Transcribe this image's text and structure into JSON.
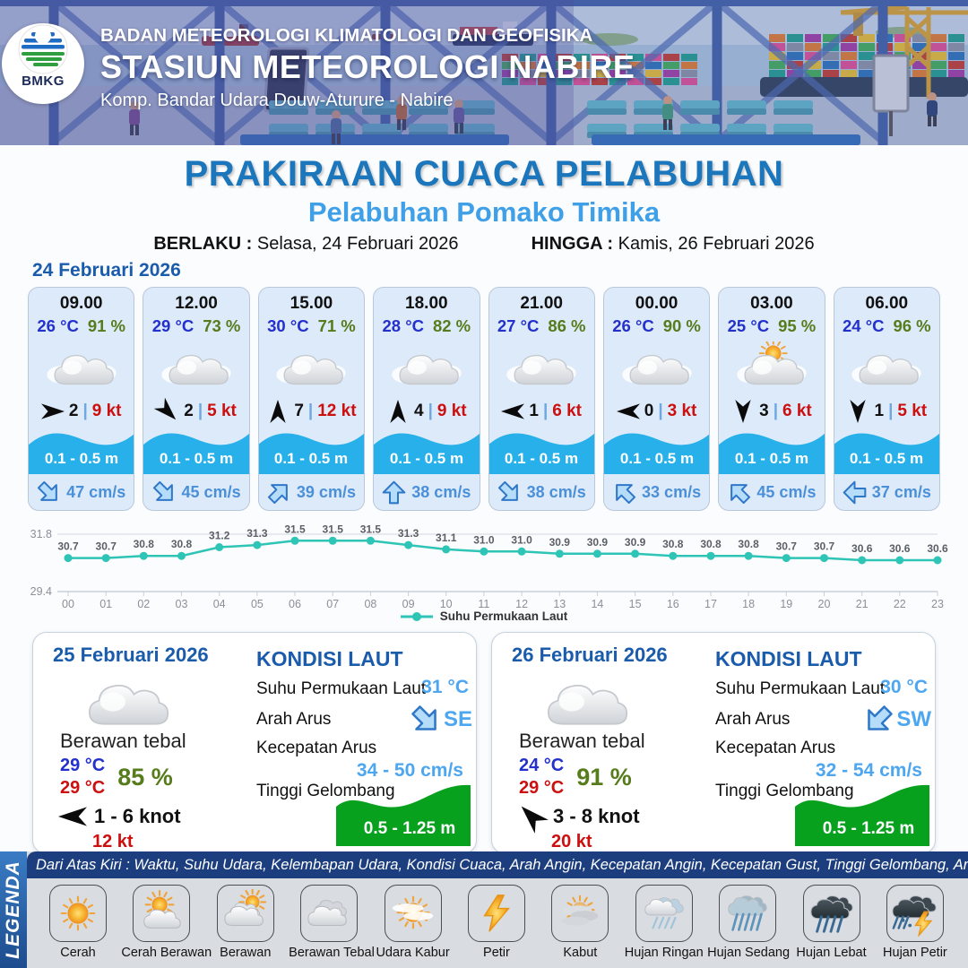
{
  "header": {
    "org": "BADAN METEOROLOGI KLIMATOLOGI DAN GEOFISIKA",
    "station": "STASIUN METEOROLOGI NABIRE",
    "address": "Komp. Bandar Udara Douw-Aturure - Nabire",
    "logo_label": "BMKG"
  },
  "title": {
    "main": "PRAKIRAAN CUACA PELABUHAN",
    "subtitle": "Pelabuhan Pomako Timika",
    "berlaku_label": "BERLAKU :",
    "berlaku_value": "Selasa, 24 Februari 2026",
    "hingga_label": "HINGGA :",
    "hingga_value": "Kamis, 26 Februari 2026"
  },
  "forecast_day_label": "24 Februari 2026",
  "hourly": [
    {
      "time": "09.00",
      "temp": "26 °C",
      "rh": "91 %",
      "weather": "berawan",
      "wind_dir": "E",
      "wind_avg": "2",
      "wind_gust": "9 kt",
      "wave": "0.1 - 0.5 m",
      "cur_dir": "SE",
      "cur": "47 cm/s"
    },
    {
      "time": "12.00",
      "temp": "29 °C",
      "rh": "73 %",
      "weather": "berawan",
      "wind_dir": "SE",
      "wind_avg": "2",
      "wind_gust": "5 kt",
      "wave": "0.1 - 0.5 m",
      "cur_dir": "SE",
      "cur": "45 cm/s"
    },
    {
      "time": "15.00",
      "temp": "30 °C",
      "rh": "71 %",
      "weather": "berawan",
      "wind_dir": "N",
      "wind_avg": "7",
      "wind_gust": "12 kt",
      "wave": "0.1 - 0.5 m",
      "cur_dir": "NE",
      "cur": "39 cm/s"
    },
    {
      "time": "18.00",
      "temp": "28 °C",
      "rh": "82 %",
      "weather": "berawan",
      "wind_dir": "N",
      "wind_avg": "4",
      "wind_gust": "9 kt",
      "wave": "0.1 - 0.5 m",
      "cur_dir": "N",
      "cur": "38 cm/s"
    },
    {
      "time": "21.00",
      "temp": "27 °C",
      "rh": "86 %",
      "weather": "berawan",
      "wind_dir": "W",
      "wind_avg": "1",
      "wind_gust": "6 kt",
      "wave": "0.1 - 0.5 m",
      "cur_dir": "SE",
      "cur": "38 cm/s"
    },
    {
      "time": "00.00",
      "temp": "26 °C",
      "rh": "90 %",
      "weather": "berawan",
      "wind_dir": "W",
      "wind_avg": "0",
      "wind_gust": "3 kt",
      "wave": "0.1 - 0.5 m",
      "cur_dir": "NW",
      "cur": "33 cm/s"
    },
    {
      "time": "03.00",
      "temp": "25 °C",
      "rh": "95 %",
      "weather": "cerah-berawan",
      "wind_dir": "S",
      "wind_avg": "3",
      "wind_gust": "6 kt",
      "wave": "0.1 - 0.5 m",
      "cur_dir": "NW",
      "cur": "45 cm/s"
    },
    {
      "time": "06.00",
      "temp": "24 °C",
      "rh": "96 %",
      "weather": "berawan",
      "wind_dir": "S",
      "wind_avg": "1",
      "wind_gust": "5 kt",
      "wave": "0.1 - 0.5 m",
      "cur_dir": "W",
      "cur": "37 cm/s"
    }
  ],
  "chart_data": {
    "type": "line",
    "x": [
      "00",
      "01",
      "02",
      "03",
      "04",
      "05",
      "06",
      "07",
      "08",
      "09",
      "10",
      "11",
      "12",
      "13",
      "14",
      "15",
      "16",
      "17",
      "18",
      "19",
      "20",
      "21",
      "22",
      "23"
    ],
    "series": [
      {
        "name": "Suhu Permukaan Laut",
        "values": [
          30.7,
          30.7,
          30.8,
          30.8,
          31.2,
          31.3,
          31.5,
          31.5,
          31.5,
          31.3,
          31.1,
          31.0,
          31.0,
          30.9,
          30.9,
          30.9,
          30.8,
          30.8,
          30.8,
          30.7,
          30.7,
          30.6,
          30.6,
          30.6
        ]
      }
    ],
    "title": "",
    "xlabel": "",
    "ylabel": "",
    "ylim": [
      29.4,
      31.8
    ],
    "yticks": [
      "31.8",
      "29.4"
    ],
    "grid": true,
    "legend_position": "bottom",
    "line_color": "#2ec4b6"
  },
  "daily": [
    {
      "date": "25 Februari 2026",
      "weather": "berawan-tebal",
      "condition": "Berawan tebal",
      "temp_blue": "29 °C",
      "temp_red": "29 °C",
      "rh": "85 %",
      "wind_dir": "W",
      "wind_range": "1  - 6 knot",
      "gust": "12 kt",
      "sea": {
        "title": "KONDISI LAUT",
        "sst_label": "Suhu Permukaan Laut",
        "sst": "31 °C",
        "arus_label": "Arah Arus",
        "arus_dir": "SE",
        "kec_label": "Kecepatan Arus",
        "kec": "34 - 50 cm/s",
        "gel_label": "Tinggi Gelombang",
        "gel": "0.5 - 1.25 m"
      }
    },
    {
      "date": "26 Februari 2026",
      "weather": "berawan-tebal",
      "condition": "Berawan tebal",
      "temp_blue": "24 °C",
      "temp_red": "29 °C",
      "rh": "91 %",
      "wind_dir": "NW",
      "wind_range": "3  - 8 knot",
      "gust": "20 kt",
      "sea": {
        "title": "KONDISI LAUT",
        "sst_label": "Suhu Permukaan Laut",
        "sst": "30 °C",
        "arus_label": "Arah Arus",
        "arus_dir": "SW",
        "kec_label": "Kecepatan Arus",
        "kec": "32 - 54 cm/s",
        "gel_label": "Tinggi Gelombang",
        "gel": "0.5 - 1.25 m"
      }
    }
  ],
  "legend": {
    "title": "LEGENDA",
    "note": "Dari Atas Kiri : Waktu, Suhu Udara, Kelembapan Udara, Kondisi Cuaca, Arah Angin, Kecepatan Angin, Kecepatan Gust, Tinggi Gelombang, Arah Arus, Kecepatan Arus",
    "items": [
      {
        "icon": "cerah-icon",
        "label": "Cerah"
      },
      {
        "icon": "cerah-berawan-icon",
        "label": "Cerah Berawan"
      },
      {
        "icon": "berawan-icon",
        "label": "Berawan"
      },
      {
        "icon": "berawan-tebal-icon",
        "label": "Berawan Tebal"
      },
      {
        "icon": "udara-kabur-icon",
        "label": "Udara Kabur"
      },
      {
        "icon": "petir-icon",
        "label": "Petir"
      },
      {
        "icon": "kabut-icon",
        "label": "Kabut"
      },
      {
        "icon": "hujan-ringan-icon",
        "label": "Hujan Ringan"
      },
      {
        "icon": "hujan-sedang-icon",
        "label": "Hujan Sedang"
      },
      {
        "icon": "hujan-lebat-icon",
        "label": "Hujan Lebat"
      },
      {
        "icon": "hujan-petir-icon",
        "label": "Hujan Petir"
      }
    ]
  },
  "colors": {
    "title_blue": "#1b76bc",
    "subtitle_blue": "#3fa0e8",
    "date_blue": "#1a5cab",
    "temp_blue": "#2330cc",
    "humidity_green": "#567c1b",
    "gust_red": "#cc0f0f",
    "wave_band_blue": "#27b0e9",
    "current_blue": "#4a90d9",
    "sea_value_blue": "#4da6f0",
    "wave_green": "#07a11d",
    "chart_teal": "#2ec4b6",
    "legend_bar_navy": "#1d3e7e"
  }
}
